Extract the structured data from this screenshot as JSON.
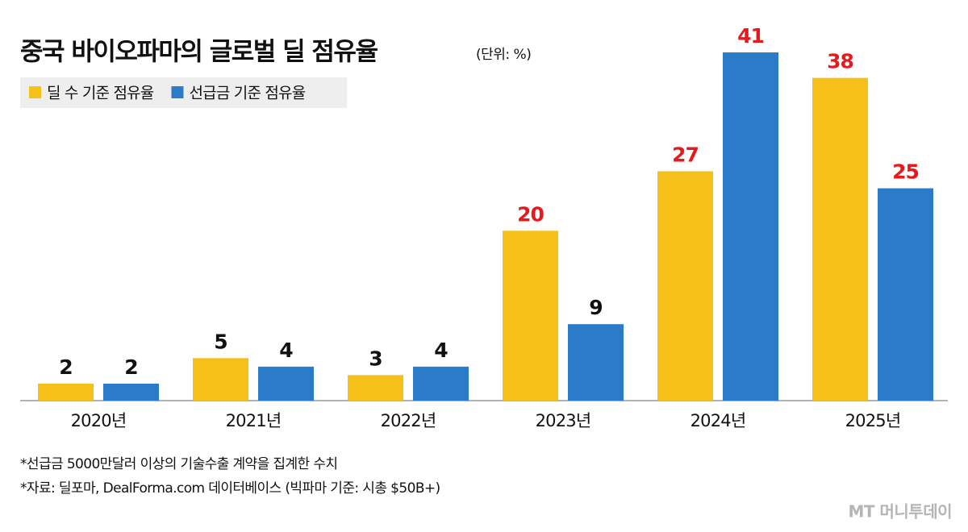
{
  "chart_data": {
    "type": "bar",
    "title": "중국 바이오파마의 글로벌 딜 점유율",
    "subtitle": "(단위: %)",
    "categories": [
      "2020년",
      "2021년",
      "2022년",
      "2023년",
      "2024년",
      "2025년"
    ],
    "series": [
      {
        "name": "딜 수 기준 점유율",
        "color": "#f5c018",
        "values": [
          2,
          5,
          3,
          20,
          27,
          38
        ],
        "label_colors": [
          "#111111",
          "#111111",
          "#111111",
          "#e8191d",
          "#e8191d",
          "#e8191d"
        ]
      },
      {
        "name": "선급금 기준 점유율",
        "color": "#2b7bc9",
        "values": [
          2,
          4,
          4,
          9,
          41,
          25
        ],
        "label_colors": [
          "#111111",
          "#111111",
          "#111111",
          "#111111",
          "#e8191d",
          "#e8191d"
        ]
      }
    ],
    "notes": [
      "*선급금 5000만달러 이상의 기술수출 계약을 집계한 수치",
      "*자료: 딜포마, DealForma.com 데이터베이스 (빅파마 기준: 시총 $50B+)"
    ],
    "logo": "MT 머니투데이"
  }
}
